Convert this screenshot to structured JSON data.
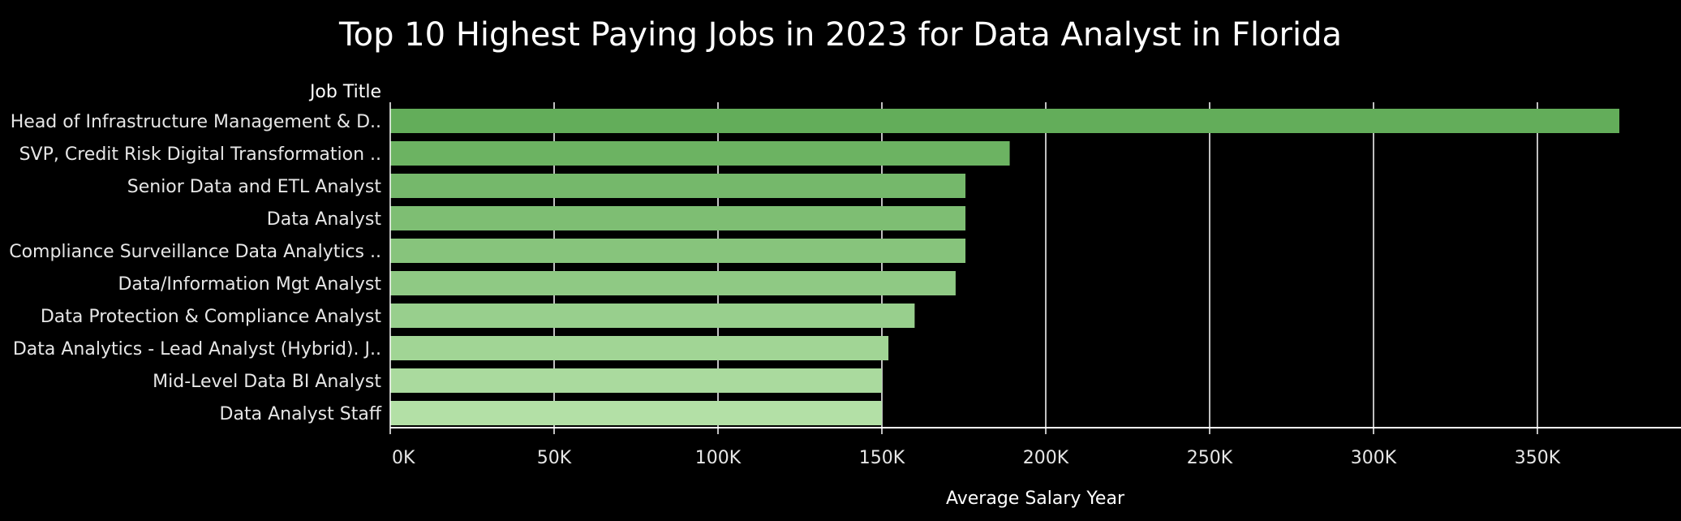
{
  "chart_data": {
    "type": "bar",
    "orientation": "horizontal",
    "title": "Top 10 Highest Paying Jobs in 2023 for Data Analyst in Florida",
    "row_header": "Job Title",
    "xlabel": "Average Salary Year",
    "ylabel": "",
    "categories": [
      "Head of Infrastructure Management & D..",
      "SVP, Credit Risk Digital Transformation ..",
      "Senior Data and ETL Analyst",
      "Data Analyst",
      "Compliance Surveillance Data Analytics ..",
      "Data/Information Mgt Analyst",
      "Data Protection & Compliance Analyst",
      "Data Analytics - Lead Analyst (Hybrid). J..",
      "Mid-Level Data BI Analyst",
      "Data Analyst Staff"
    ],
    "values": [
      375000,
      189000,
      175500,
      175500,
      175500,
      172500,
      160000,
      152000,
      150000,
      150000
    ],
    "xlim": [
      0,
      395000
    ],
    "ticks": [
      0,
      50000,
      100000,
      150000,
      200000,
      250000,
      300000,
      350000
    ],
    "tick_labels": [
      "0K",
      "50K",
      "100K",
      "150K",
      "200K",
      "250K",
      "300K",
      "350K"
    ],
    "grid": "vertical",
    "legend": "none",
    "colors": {
      "background": "#000000",
      "bar_dark": "#63ad5a",
      "bar_light": "#b3e0a6",
      "gridline": "#ffffff",
      "text": "#ffffff"
    }
  }
}
